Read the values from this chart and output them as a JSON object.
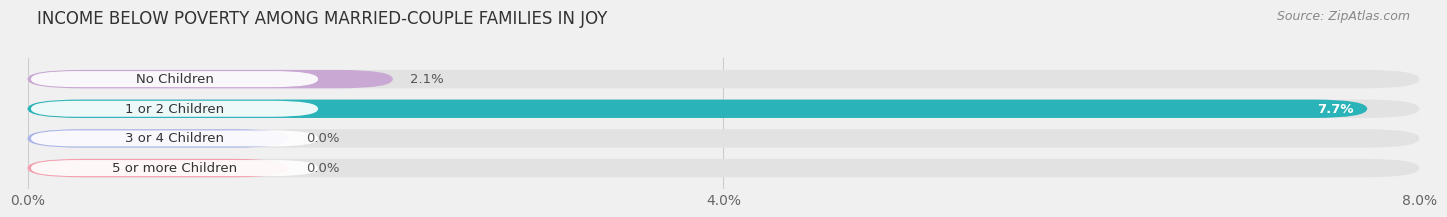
{
  "title": "INCOME BELOW POVERTY AMONG MARRIED-COUPLE FAMILIES IN JOY",
  "source": "Source: ZipAtlas.com",
  "categories": [
    "No Children",
    "1 or 2 Children",
    "3 or 4 Children",
    "5 or more Children"
  ],
  "values": [
    2.1,
    7.7,
    0.0,
    0.0
  ],
  "bar_colors": [
    "#c9a8d4",
    "#2ab3b8",
    "#aab4e8",
    "#f4a0b0"
  ],
  "xlim": [
    0,
    8.0
  ],
  "xticks": [
    0.0,
    4.0,
    8.0
  ],
  "xticklabels": [
    "0.0%",
    "4.0%",
    "8.0%"
  ],
  "title_fontsize": 12,
  "tick_fontsize": 10,
  "bar_height": 0.62,
  "background_color": "#f0f0f0",
  "bar_bg_color": "#e2e2e2",
  "label_box_color": "#ffffff",
  "label_text_color": "#333333",
  "value_text_color_inside": "#ffffff",
  "value_text_color_outside": "#555555",
  "zero_bar_width": 1.5
}
